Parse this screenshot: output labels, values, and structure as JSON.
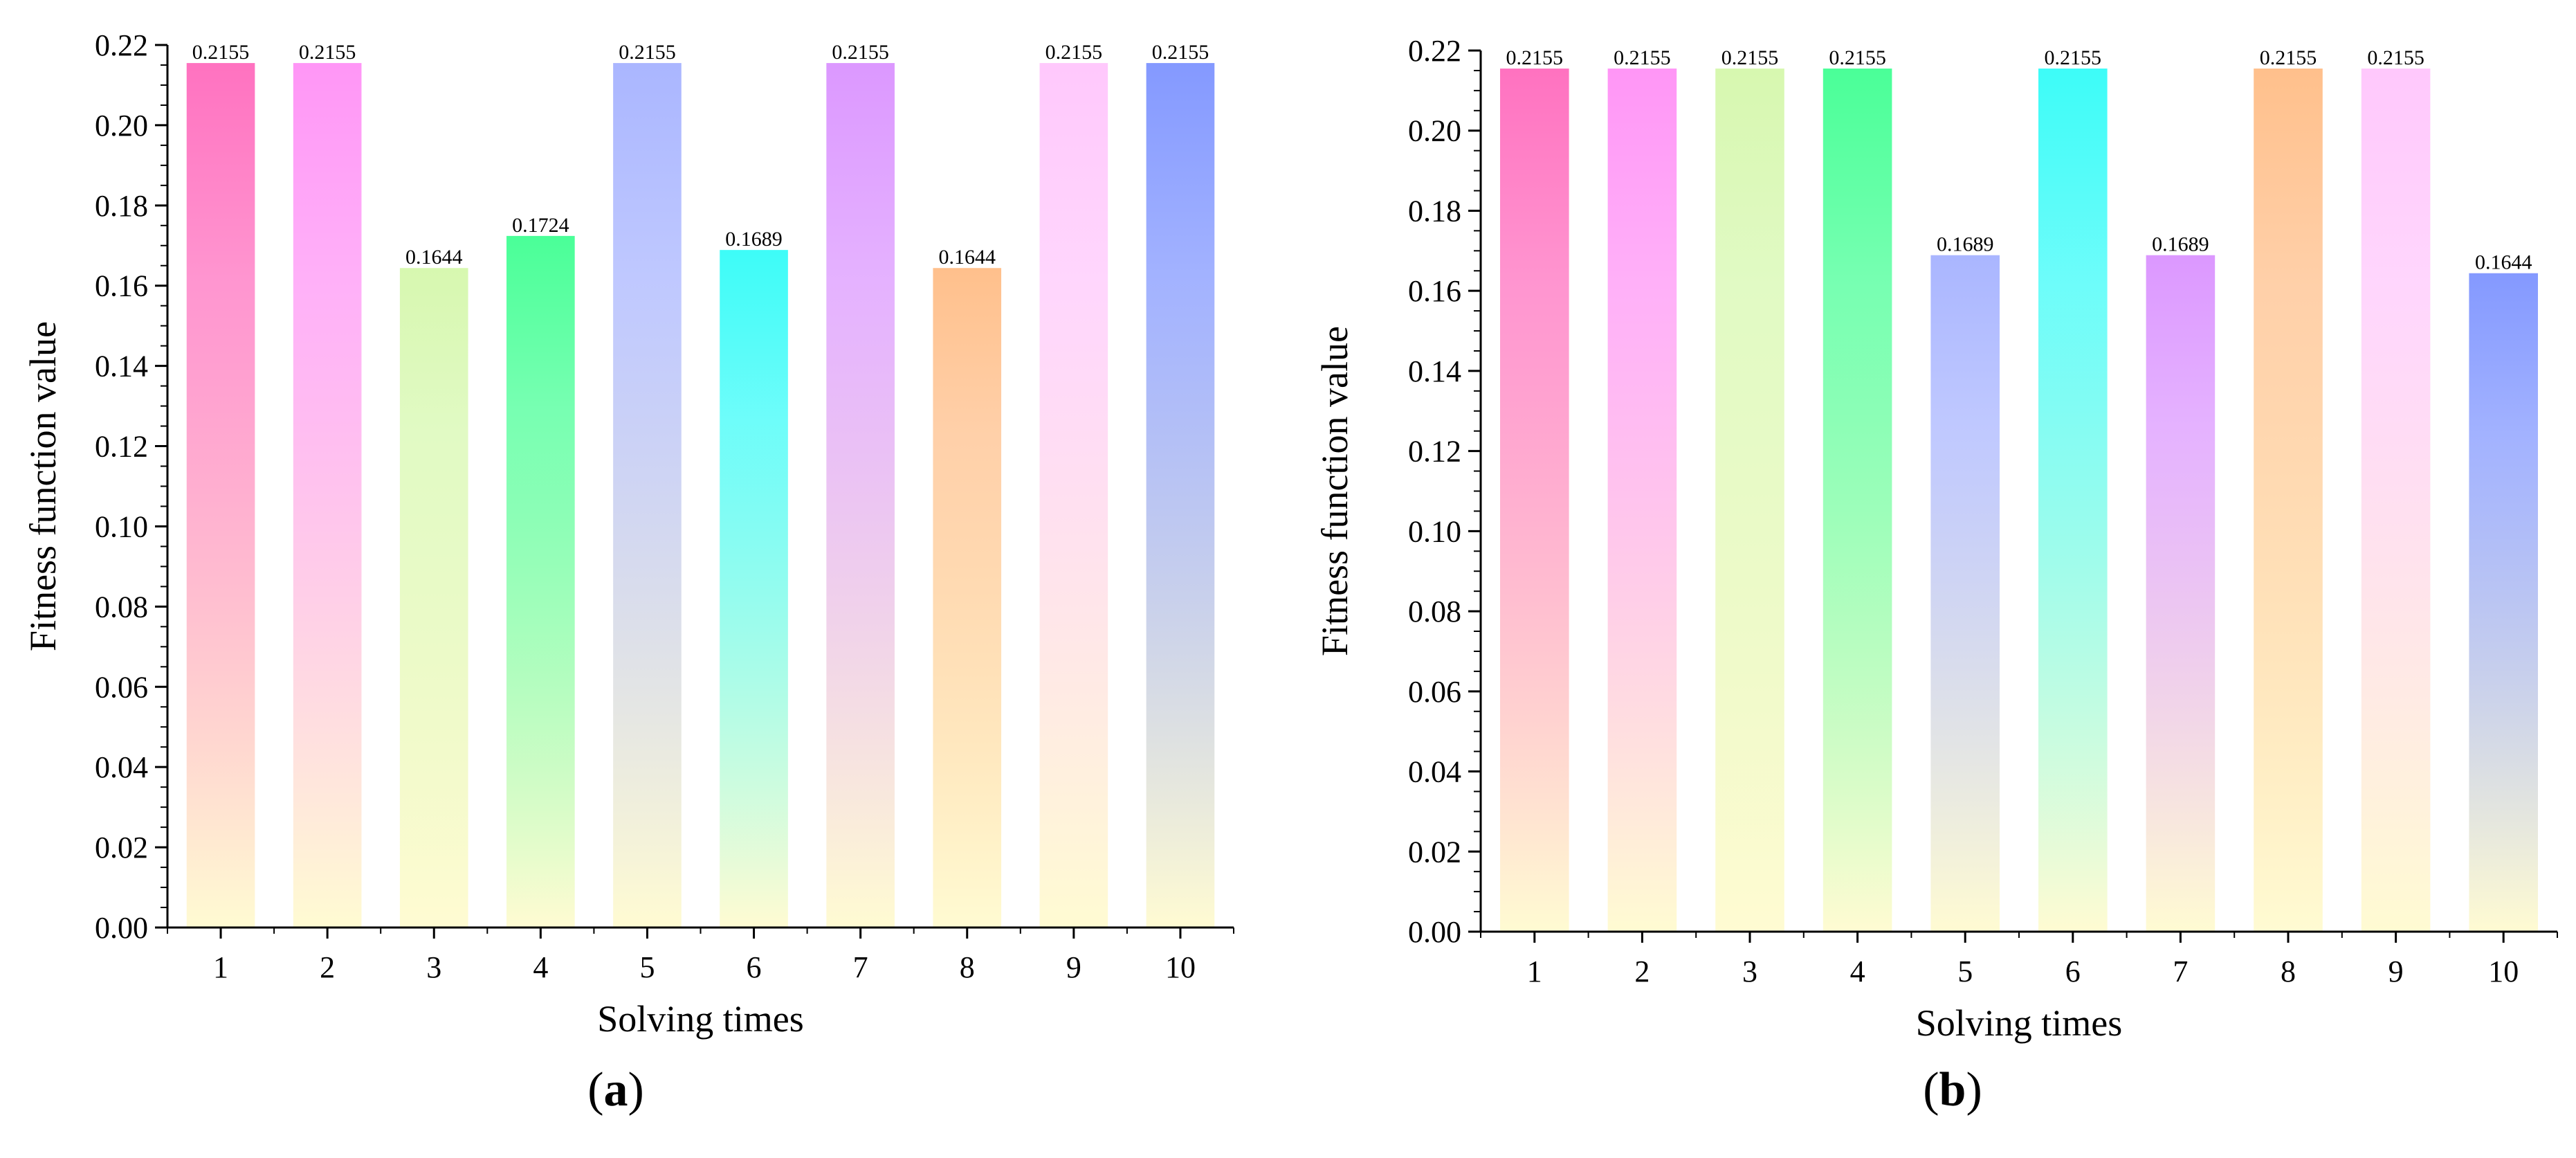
{
  "chart_data": [
    {
      "type": "bar",
      "panel_label": "a",
      "categories": [
        "1",
        "2",
        "3",
        "4",
        "5",
        "6",
        "7",
        "8",
        "9",
        "10"
      ],
      "values": [
        0.2155,
        0.2155,
        0.1644,
        0.1724,
        0.2155,
        0.1689,
        0.2155,
        0.1644,
        0.2155,
        0.2155
      ],
      "data_labels": [
        "0.2155",
        "0.2155",
        "0.1644",
        "0.1724",
        "0.2155",
        "0.1689",
        "0.2155",
        "0.1644",
        "0.2155",
        "0.2155"
      ],
      "bar_colors": [
        "#ff72c0",
        "#ff96f6",
        "#d7f8b0",
        "#4aff98",
        "#aab6ff",
        "#3dfcf8",
        "#dc98ff",
        "#ffc08c",
        "#ffc8fc",
        "#8499ff"
      ],
      "bar_base_color": "#fffbd2",
      "title": "",
      "xlabel": "Solving times",
      "ylabel": "Fitness function value",
      "ylim": [
        0,
        0.22
      ],
      "yticks": [
        "0.00",
        "0.02",
        "0.04",
        "0.06",
        "0.08",
        "0.10",
        "0.12",
        "0.14",
        "0.16",
        "0.18",
        "0.20",
        "0.22"
      ],
      "grid": false,
      "legend": "none"
    },
    {
      "type": "bar",
      "panel_label": "b",
      "categories": [
        "1",
        "2",
        "3",
        "4",
        "5",
        "6",
        "7",
        "8",
        "9",
        "10"
      ],
      "values": [
        0.2155,
        0.2155,
        0.2155,
        0.2155,
        0.1689,
        0.2155,
        0.1689,
        0.2155,
        0.2155,
        0.1644
      ],
      "data_labels": [
        "0.2155",
        "0.2155",
        "0.2155",
        "0.2155",
        "0.1689",
        "0.2155",
        "0.1689",
        "0.2155",
        "0.2155",
        "0.1644"
      ],
      "bar_colors": [
        "#ff72c0",
        "#ff96f6",
        "#d7f8b0",
        "#4aff98",
        "#aab6ff",
        "#3dfcf8",
        "#dc98ff",
        "#ffc08c",
        "#ffc8fc",
        "#8499ff"
      ],
      "bar_base_color": "#fffbd2",
      "title": "",
      "xlabel": "Solving times",
      "ylabel": "Fitness function value",
      "ylim": [
        0,
        0.22
      ],
      "yticks": [
        "0.00",
        "0.02",
        "0.04",
        "0.06",
        "0.08",
        "0.10",
        "0.12",
        "0.14",
        "0.16",
        "0.18",
        "0.20",
        "0.22"
      ],
      "grid": false,
      "legend": "none"
    }
  ]
}
